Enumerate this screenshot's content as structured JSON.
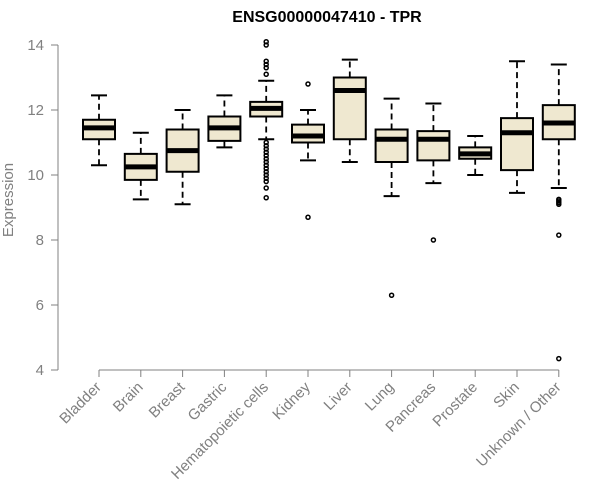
{
  "chart_data": {
    "type": "box",
    "title": "ENSG00000047410 - TPR",
    "ylabel": "Expression",
    "xlabel": "",
    "ylim": [
      4,
      14
    ],
    "yticks": [
      4,
      6,
      8,
      10,
      12,
      14
    ],
    "grid": false,
    "legend": "none",
    "colors": {
      "box_fill": "#efe8d0",
      "box_stroke": "#000000",
      "axis": "#808080",
      "text": "#808080",
      "title": "#000000"
    },
    "categories": [
      "Bladder",
      "Brain",
      "Breast",
      "Gastric",
      "Hematopoietic cells",
      "Kidney",
      "Liver",
      "Lung",
      "Pancreas",
      "Prostate",
      "Skin",
      "Unknown / Other"
    ],
    "boxes": [
      {
        "category": "Bladder",
        "whisker_low": 10.3,
        "q1": 11.1,
        "median": 11.45,
        "q3": 11.7,
        "whisker_high": 12.45,
        "outliers": []
      },
      {
        "category": "Brain",
        "whisker_low": 9.25,
        "q1": 9.85,
        "median": 10.25,
        "q3": 10.65,
        "whisker_high": 11.3,
        "outliers": []
      },
      {
        "category": "Breast",
        "whisker_low": 9.1,
        "q1": 10.1,
        "median": 10.75,
        "q3": 11.4,
        "whisker_high": 12.0,
        "outliers": []
      },
      {
        "category": "Gastric",
        "whisker_low": 10.85,
        "q1": 11.05,
        "median": 11.45,
        "q3": 11.8,
        "whisker_high": 12.45,
        "outliers": []
      },
      {
        "category": "Hematopoietic cells",
        "whisker_low": 11.1,
        "q1": 11.8,
        "median": 12.05,
        "q3": 12.25,
        "whisker_high": 12.9,
        "outliers": [
          14.1,
          14.0,
          13.5,
          13.4,
          13.3,
          13.1,
          11.0,
          10.9,
          10.8,
          10.7,
          10.6,
          10.5,
          10.4,
          10.3,
          10.2,
          10.1,
          10.0,
          9.9,
          9.8,
          9.6,
          9.3
        ]
      },
      {
        "category": "Kidney",
        "whisker_low": 10.45,
        "q1": 11.0,
        "median": 11.2,
        "q3": 11.55,
        "whisker_high": 12.0,
        "outliers": [
          12.8,
          8.7
        ]
      },
      {
        "category": "Liver",
        "whisker_low": 10.4,
        "q1": 11.1,
        "median": 12.6,
        "q3": 13.0,
        "whisker_high": 13.55,
        "outliers": []
      },
      {
        "category": "Lung",
        "whisker_low": 9.35,
        "q1": 10.4,
        "median": 11.1,
        "q3": 11.4,
        "whisker_high": 12.35,
        "outliers": [
          6.3
        ]
      },
      {
        "category": "Pancreas",
        "whisker_low": 9.75,
        "q1": 10.45,
        "median": 11.1,
        "q3": 11.35,
        "whisker_high": 12.2,
        "outliers": [
          8.0
        ]
      },
      {
        "category": "Prostate",
        "whisker_low": 10.0,
        "q1": 10.5,
        "median": 10.65,
        "q3": 10.85,
        "whisker_high": 11.2,
        "outliers": []
      },
      {
        "category": "Skin",
        "whisker_low": 9.45,
        "q1": 10.15,
        "median": 11.3,
        "q3": 11.75,
        "whisker_high": 13.5,
        "outliers": []
      },
      {
        "category": "Unknown / Other",
        "whisker_low": 9.6,
        "q1": 11.1,
        "median": 11.6,
        "q3": 12.15,
        "whisker_high": 13.4,
        "outliers": [
          9.25,
          9.2,
          9.15,
          9.1,
          8.15,
          4.35
        ]
      }
    ]
  }
}
